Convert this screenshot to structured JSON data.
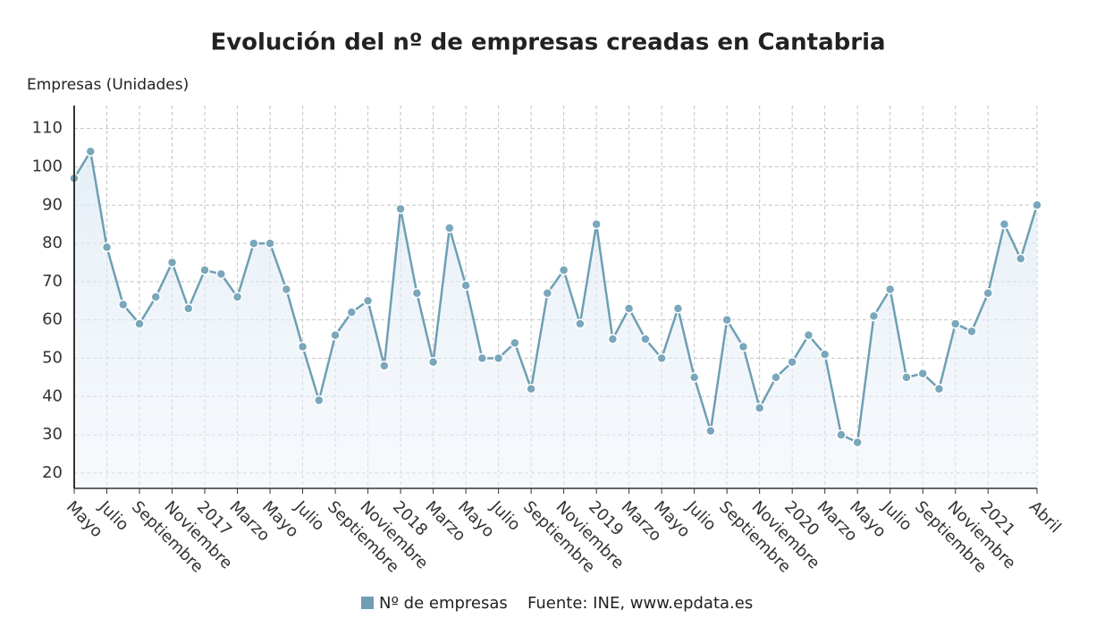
{
  "chart_data": {
    "type": "line",
    "title": "Evolución del nº de empresas creadas en Cantabria",
    "y_label": "Empresas (Unidades)",
    "source": "Fuente: INE, www.epdata.es",
    "categories": [
      "Mayo",
      null,
      "Julio",
      null,
      "Septiembre",
      null,
      "Noviembre",
      null,
      "2017",
      null,
      "Marzo",
      null,
      "Mayo",
      null,
      "Julio",
      null,
      "Septiembre",
      null,
      "Noviembre",
      null,
      "2018",
      null,
      "Marzo",
      null,
      "Mayo",
      null,
      "Julio",
      null,
      "Septiembre",
      null,
      "Noviembre",
      null,
      "2019",
      null,
      "Marzo",
      null,
      "Mayo",
      null,
      "Julio",
      null,
      "Septiembre",
      null,
      "Noviembre",
      null,
      "2020",
      null,
      "Marzo",
      null,
      "Mayo",
      null,
      "Julio",
      null,
      "Septiembre",
      null,
      "Noviembre",
      null,
      "2021",
      null,
      null,
      "Abril"
    ],
    "series": [
      {
        "name": "Nº de empresas",
        "color": "#6e9fb3",
        "values": [
          97,
          104,
          79,
          64,
          59,
          66,
          75,
          63,
          73,
          72,
          66,
          80,
          80,
          68,
          53,
          39,
          56,
          62,
          65,
          48,
          89,
          67,
          49,
          84,
          69,
          50,
          50,
          54,
          42,
          67,
          73,
          59,
          85,
          55,
          63,
          55,
          50,
          63,
          45,
          31,
          60,
          53,
          37,
          45,
          49,
          56,
          51,
          30,
          28,
          61,
          68,
          45,
          46,
          42,
          59,
          57,
          67,
          85,
          76,
          90
        ]
      }
    ],
    "ylim": [
      16,
      116
    ],
    "yticks": [
      20,
      30,
      40,
      50,
      60,
      70,
      80,
      90,
      100,
      110
    ],
    "grid": true
  }
}
